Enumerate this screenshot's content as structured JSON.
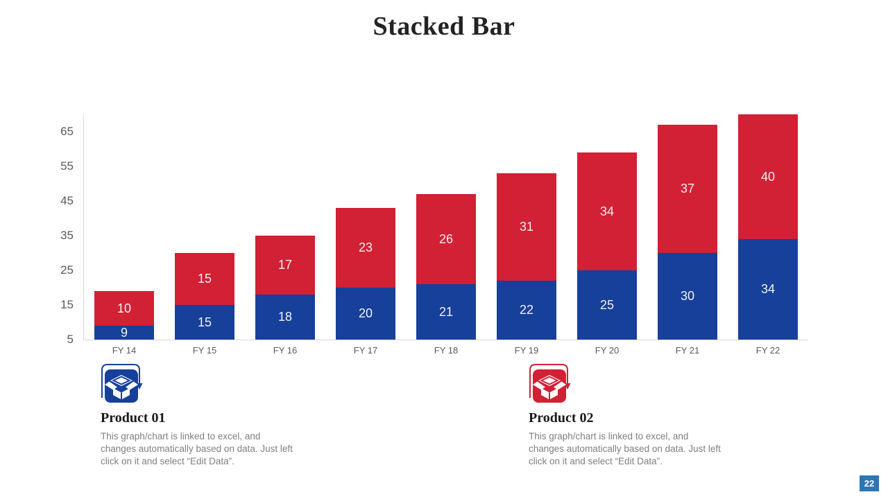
{
  "slide": {
    "title": "Stacked Bar",
    "page_number": "22"
  },
  "chart_data": {
    "type": "bar",
    "stacked": true,
    "title": "Stacked Bar",
    "categories": [
      "FY 14",
      "FY 15",
      "FY 16",
      "FY 17",
      "FY 18",
      "FY 19",
      "FY 20",
      "FY 21",
      "FY 22"
    ],
    "series": [
      {
        "name": "Product 01",
        "color": "#17409A",
        "values": [
          9,
          15,
          18,
          20,
          21,
          22,
          25,
          30,
          34
        ]
      },
      {
        "name": "Product 02",
        "color": "#D22035",
        "values": [
          10,
          15,
          17,
          23,
          26,
          31,
          34,
          37,
          40
        ]
      }
    ],
    "yticks": [
      5,
      15,
      25,
      35,
      45,
      55,
      65
    ],
    "ylim": [
      5,
      70
    ],
    "grid": false,
    "legend_position": "bottom",
    "bar_label_color": "#F2F2F2",
    "axis_line_color": "#D9D9D9",
    "tick_label_color": "#595959"
  },
  "legend": {
    "items": [
      {
        "title": "Product 01",
        "color": "#17409A",
        "icon": "open-box-icon",
        "description_lines": [
          "This graph/chart is linked to excel, and",
          "changes automatically based on data. Just left",
          "click on it and select “Edit Data”."
        ]
      },
      {
        "title": "Product 02",
        "color": "#D22035",
        "icon": "open-box-icon",
        "description_lines": [
          "This graph/chart is linked to excel, and",
          "changes automatically based on data. Just left",
          "click on it and select “Edit Data”."
        ]
      }
    ]
  }
}
